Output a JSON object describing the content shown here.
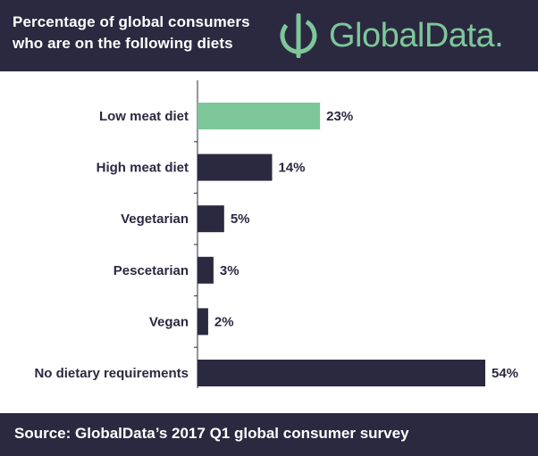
{
  "header": {
    "title_line1": "Percentage of global consumers",
    "title_line2": "who are on the following diets",
    "brand": "GlobalData."
  },
  "footer": {
    "source": "Source: GlobalData’s 2017 Q1 global consumer survey"
  },
  "colors": {
    "header_bg": "#2b2940",
    "bar_default": "#2b2940",
    "bar_highlight": "#7dc79a",
    "brand_green": "#7dc79a"
  },
  "chart_data": {
    "type": "bar",
    "orientation": "horizontal",
    "title": "Percentage of global consumers who are on the following diets",
    "categories": [
      "Low meat diet",
      "High meat diet",
      "Vegetarian",
      "Pescetarian",
      "Vegan",
      "No dietary requirements"
    ],
    "values": [
      23,
      14,
      5,
      3,
      2,
      54
    ],
    "value_labels": [
      "23%",
      "14%",
      "5%",
      "3%",
      "2%",
      "54%"
    ],
    "highlight_index": 0,
    "unit": "%",
    "xlim": [
      0,
      54
    ],
    "grid": false,
    "legend": "none"
  }
}
